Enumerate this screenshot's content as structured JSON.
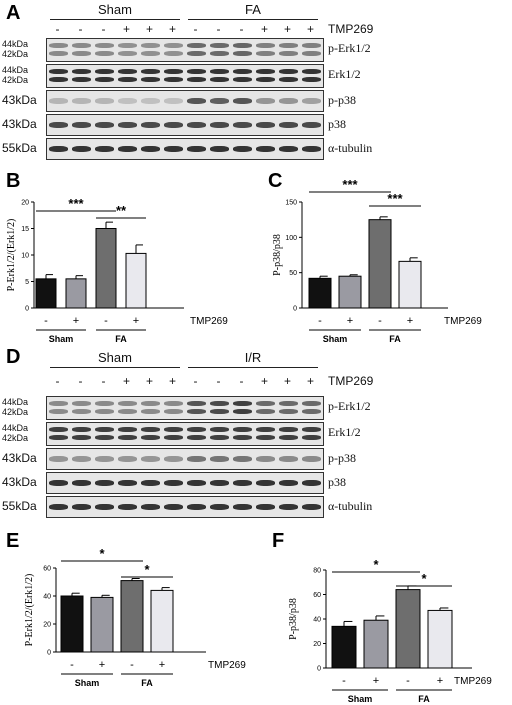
{
  "panels": {
    "A": {
      "letter": "A",
      "groups": [
        "Sham",
        "FA"
      ],
      "treatment_label": "TMP269",
      "signs": [
        "-",
        "-",
        "-",
        "+",
        "+",
        "+",
        "-",
        "-",
        "-",
        "+",
        "+",
        "+"
      ],
      "rows": [
        {
          "protein": "p-Erk1/2",
          "mw": [
            "44kDa",
            "42kDa"
          ],
          "double": true,
          "intensity": [
            0.45,
            0.45,
            0.45,
            0.42,
            0.42,
            0.42,
            0.6,
            0.6,
            0.62,
            0.5,
            0.5,
            0.5
          ]
        },
        {
          "protein": "Erk1/2",
          "mw": [
            "44kDa",
            "42kDa"
          ],
          "double": true,
          "intensity": [
            0.85,
            0.85,
            0.85,
            0.85,
            0.85,
            0.85,
            0.85,
            0.85,
            0.85,
            0.85,
            0.85,
            0.85
          ]
        },
        {
          "protein": "p-p38",
          "mw": [
            "43kDa"
          ],
          "double": false,
          "intensity": [
            0.25,
            0.25,
            0.25,
            0.2,
            0.2,
            0.2,
            0.7,
            0.65,
            0.7,
            0.4,
            0.4,
            0.35
          ]
        },
        {
          "protein": "p38",
          "mw": [
            "43kDa"
          ],
          "double": false,
          "intensity": [
            0.75,
            0.75,
            0.75,
            0.75,
            0.75,
            0.75,
            0.75,
            0.75,
            0.75,
            0.75,
            0.75,
            0.75
          ]
        },
        {
          "protein": "α-tubulin",
          "mw": [
            "55kDa"
          ],
          "double": false,
          "intensity": [
            0.85,
            0.85,
            0.85,
            0.85,
            0.85,
            0.85,
            0.85,
            0.85,
            0.85,
            0.85,
            0.85,
            0.85
          ]
        }
      ]
    },
    "D": {
      "letter": "D",
      "groups": [
        "Sham",
        "I/R"
      ],
      "treatment_label": "TMP269",
      "signs": [
        "-",
        "-",
        "-",
        "+",
        "+",
        "+",
        "-",
        "-",
        "-",
        "+",
        "+",
        "+"
      ],
      "rows": [
        {
          "protein": "p-Erk1/2",
          "mw": [
            "44kDa",
            "42kDa"
          ],
          "double": true,
          "intensity": [
            0.45,
            0.45,
            0.45,
            0.45,
            0.45,
            0.45,
            0.7,
            0.75,
            0.8,
            0.6,
            0.6,
            0.6
          ]
        },
        {
          "protein": "Erk1/2",
          "mw": [
            "44kDa",
            "42kDa"
          ],
          "double": true,
          "intensity": [
            0.8,
            0.8,
            0.8,
            0.8,
            0.8,
            0.8,
            0.8,
            0.8,
            0.8,
            0.8,
            0.8,
            0.8
          ]
        },
        {
          "protein": "p-p38",
          "mw": [
            "43kDa"
          ],
          "double": false,
          "intensity": [
            0.4,
            0.4,
            0.4,
            0.4,
            0.4,
            0.4,
            0.55,
            0.55,
            0.55,
            0.45,
            0.45,
            0.45
          ]
        },
        {
          "protein": "p38",
          "mw": [
            "43kDa"
          ],
          "double": false,
          "intensity": [
            0.85,
            0.85,
            0.85,
            0.85,
            0.85,
            0.85,
            0.85,
            0.85,
            0.85,
            0.85,
            0.85,
            0.85
          ]
        },
        {
          "protein": "α-tubulin",
          "mw": [
            "55kDa"
          ],
          "double": false,
          "intensity": [
            0.85,
            0.85,
            0.85,
            0.85,
            0.85,
            0.85,
            0.85,
            0.85,
            0.85,
            0.85,
            0.85,
            0.85
          ]
        }
      ]
    }
  },
  "chart_data": [
    {
      "panel": "B",
      "type": "bar",
      "ylabel": "P-Erk1/2/(Erk1/2)",
      "ylim": [
        0,
        20
      ],
      "yticks": [
        "0",
        "5",
        "10",
        "15",
        "20"
      ],
      "categories": [
        "-",
        "+",
        "-",
        "+"
      ],
      "treatment_label": "TMP269",
      "groups": [
        "Sham",
        "FA"
      ],
      "values": [
        5.5,
        5.5,
        15.0,
        10.3
      ],
      "errors": [
        0.8,
        0.6,
        1.2,
        1.6
      ],
      "colors": [
        "#111111",
        "#9a9aa2",
        "#6e6e6e",
        "#e9e9ee"
      ],
      "significance": [
        {
          "label": "***",
          "from": 0,
          "to": 2
        },
        {
          "label": "**",
          "from": 2,
          "to": 3
        }
      ]
    },
    {
      "panel": "C",
      "type": "bar",
      "ylabel": "P-p38/p38",
      "ylim": [
        0,
        150
      ],
      "yticks": [
        "0",
        "50",
        "100",
        "150"
      ],
      "categories": [
        "-",
        "+",
        "-",
        "+"
      ],
      "treatment_label": "TMP269",
      "groups": [
        "Sham",
        "FA"
      ],
      "values": [
        42,
        45,
        125,
        66
      ],
      "errors": [
        3,
        2,
        4,
        5
      ],
      "colors": [
        "#111111",
        "#9a9aa2",
        "#6e6e6e",
        "#e9e9ee"
      ],
      "significance": [
        {
          "label": "***",
          "from": 0,
          "to": 2
        },
        {
          "label": "***",
          "from": 2,
          "to": 3
        }
      ]
    },
    {
      "panel": "E",
      "type": "bar",
      "ylabel": "P-Erk1/2/(Erk1/2)",
      "ylim": [
        0,
        60
      ],
      "yticks": [
        "0",
        "20",
        "40",
        "60"
      ],
      "categories": [
        "-",
        "+",
        "-",
        "+"
      ],
      "treatment_label": "TMP269",
      "groups": [
        "Sham",
        "FA"
      ],
      "values": [
        40,
        39,
        51,
        44
      ],
      "errors": [
        2,
        1.5,
        1.5,
        2
      ],
      "colors": [
        "#111111",
        "#9a9aa2",
        "#6e6e6e",
        "#e9e9ee"
      ],
      "significance": [
        {
          "label": "*",
          "from": 0,
          "to": 2
        },
        {
          "label": "*",
          "from": 2,
          "to": 3
        }
      ]
    },
    {
      "panel": "F",
      "type": "bar",
      "ylabel": "P-p38/p38",
      "ylim": [
        0,
        80
      ],
      "yticks": [
        "0",
        "20",
        "40",
        "60",
        "80"
      ],
      "categories": [
        "-",
        "+",
        "-",
        "+"
      ],
      "treatment_label": "TMP269",
      "groups": [
        "Sham",
        "FA"
      ],
      "values": [
        34,
        39,
        64,
        47
      ],
      "errors": [
        4,
        3.5,
        3,
        2
      ],
      "colors": [
        "#111111",
        "#9a9aa2",
        "#6e6e6e",
        "#e9e9ee"
      ],
      "significance": [
        {
          "label": "*",
          "from": 0,
          "to": 2
        },
        {
          "label": "*",
          "from": 2,
          "to": 3
        }
      ]
    }
  ]
}
